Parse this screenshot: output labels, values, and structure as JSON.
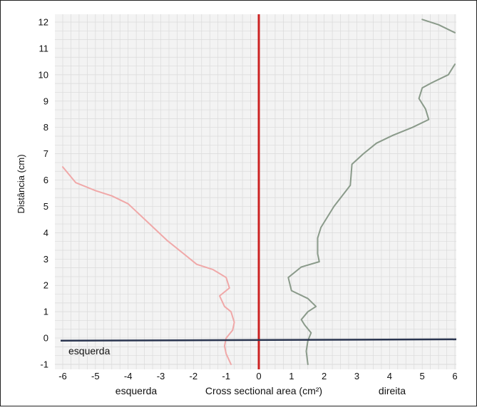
{
  "chart_data": {
    "type": "line",
    "title": "",
    "xlabel": "Cross sectional area (cm²)",
    "ylabel": "Distância (cm)",
    "xlim": [
      -6,
      6
    ],
    "ylim": [
      -1,
      12
    ],
    "xticks": [
      -6,
      -5,
      -4,
      -3,
      -2,
      -1,
      0,
      1,
      2,
      3,
      4,
      5,
      6
    ],
    "yticks": [
      -1,
      0,
      1,
      2,
      3,
      4,
      5,
      6,
      7,
      8,
      9,
      10,
      11,
      12
    ],
    "x_annotations": {
      "left": "esquerda",
      "right": "direita"
    },
    "inset_label": "esquerda",
    "colors": {
      "left_series": "#f0a8a8",
      "right_series": "#8a9a8a",
      "zero_vertical": "#cc2222",
      "zero_horizontal": "#2a3550",
      "inset_label": "#cc2222",
      "grid": "#dadada",
      "plot_bg": "#f3f3f3"
    },
    "series": [
      {
        "key": "left",
        "x": [
          -6.0,
          -5.6,
          -5.0,
          -4.5,
          -4.0,
          -3.4,
          -2.8,
          -2.3,
          -1.9,
          -1.4,
          -1.0,
          -0.9,
          -1.2,
          -1.05,
          -0.85,
          -0.75,
          -0.8,
          -1.0,
          -1.05,
          -1.0,
          -0.85
        ],
        "y": [
          6.5,
          5.9,
          5.6,
          5.4,
          5.1,
          4.4,
          3.7,
          3.2,
          2.8,
          2.6,
          2.3,
          1.9,
          1.6,
          1.2,
          1.0,
          0.6,
          0.3,
          0.0,
          -0.3,
          -0.6,
          -1.0
        ]
      },
      {
        "key": "right",
        "x": [
          1.5,
          1.45,
          1.5,
          1.6,
          1.4,
          1.3,
          1.5,
          1.75,
          1.5,
          1.0,
          0.9,
          1.3,
          1.85,
          1.8,
          1.8,
          1.9,
          2.3,
          2.8,
          2.85,
          3.2,
          3.6,
          4.1,
          4.7,
          5.2,
          5.1,
          4.9,
          5.0,
          5.3,
          5.8,
          6.0
        ],
        "y": [
          -1.0,
          -0.5,
          -0.1,
          0.2,
          0.5,
          0.7,
          1.0,
          1.2,
          1.5,
          1.8,
          2.3,
          2.7,
          2.9,
          3.2,
          3.8,
          4.2,
          5.0,
          5.8,
          6.6,
          7.0,
          7.4,
          7.7,
          8.0,
          8.3,
          8.7,
          9.1,
          9.5,
          9.7,
          10.0,
          10.4
        ]
      },
      {
        "key": "right-top",
        "x": [
          5.0,
          5.5,
          6.0
        ],
        "y": [
          12.1,
          11.9,
          11.6
        ]
      }
    ]
  }
}
